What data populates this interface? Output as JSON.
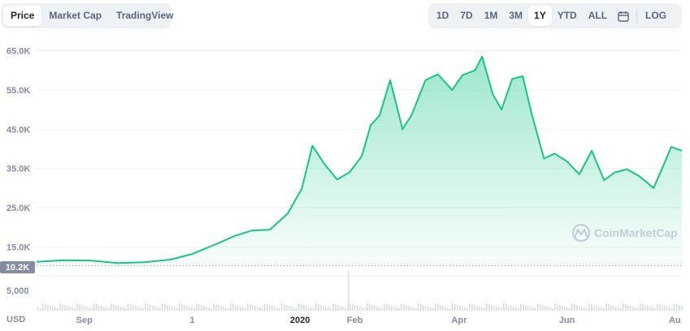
{
  "tabs_left": [
    "Price",
    "Market Cap",
    "TradingView"
  ],
  "tabs_right": [
    "1D",
    "7D",
    "1M",
    "3M",
    "1Y",
    "YTD",
    "ALL"
  ],
  "log_label": "LOG",
  "watermark": "CoinMarketCap",
  "currency": "USD",
  "current_price_label": "10.2K",
  "colors": {
    "line": "#16c784",
    "area_top": "#16c784",
    "grid": "#eff2f5",
    "label_bg": "#858ca2",
    "volume": "#d9dde4"
  },
  "chart_data": {
    "type": "area",
    "x_axis": {
      "type": "date",
      "range": [
        "2020-08-05",
        "2021-08-05"
      ],
      "ticks": [
        [
          "2020-09-01",
          "Sep"
        ],
        [
          "2020-11-01",
          "1"
        ],
        [
          "2021-01-01",
          "2020"
        ],
        [
          "2021-02-01",
          "Feb"
        ],
        [
          "2021-04-01",
          "Apr"
        ],
        [
          "2021-06-01",
          "Jun"
        ],
        [
          "2021-08-01",
          "Au"
        ]
      ]
    },
    "y_axis": {
      "ticks": [
        [
          65000,
          "65.0K"
        ],
        [
          55000,
          "55.0K"
        ],
        [
          45000,
          "45.0K"
        ],
        [
          35000,
          "35.0K"
        ],
        [
          25000,
          "25.0K"
        ],
        [
          15000,
          "15.0K"
        ]
      ],
      "ylim": [
        9500,
        68000
      ]
    },
    "reference_line": 10200,
    "volume_axis": {
      "ticks": [
        [
          5000,
          "5,000"
        ]
      ]
    },
    "series": [
      {
        "x": [
          "2020-08-05",
          "2020-08-20",
          "2020-09-05",
          "2020-09-20",
          "2020-10-05",
          "2020-10-20",
          "2020-11-01",
          "2020-11-15",
          "2020-11-25",
          "2020-12-05",
          "2020-12-15",
          "2020-12-25",
          "2021-01-02",
          "2021-01-08",
          "2021-01-15",
          "2021-01-22",
          "2021-01-29",
          "2021-02-05",
          "2021-02-10",
          "2021-02-15",
          "2021-02-21",
          "2021-02-28",
          "2021-03-05",
          "2021-03-13",
          "2021-03-20",
          "2021-03-28",
          "2021-04-03",
          "2021-04-10",
          "2021-04-14",
          "2021-04-20",
          "2021-04-25",
          "2021-05-01",
          "2021-05-07",
          "2021-05-12",
          "2021-05-19",
          "2021-05-25",
          "2021-06-01",
          "2021-06-08",
          "2021-06-15",
          "2021-06-22",
          "2021-06-28",
          "2021-07-05",
          "2021-07-12",
          "2021-07-20",
          "2021-07-25",
          "2021-07-30",
          "2021-08-05"
        ],
        "y": [
          11200,
          11600,
          11500,
          10900,
          11100,
          11800,
          13200,
          15800,
          17800,
          19200,
          19400,
          23500,
          29800,
          40800,
          36000,
          32200,
          34000,
          38200,
          46000,
          48500,
          57500,
          45000,
          48500,
          57500,
          59000,
          55000,
          58800,
          60000,
          63500,
          54000,
          50000,
          57800,
          58500,
          49000,
          37500,
          38800,
          36800,
          33500,
          39500,
          32000,
          34000,
          34800,
          33000,
          30000,
          35200,
          40500,
          39500
        ]
      }
    ]
  }
}
